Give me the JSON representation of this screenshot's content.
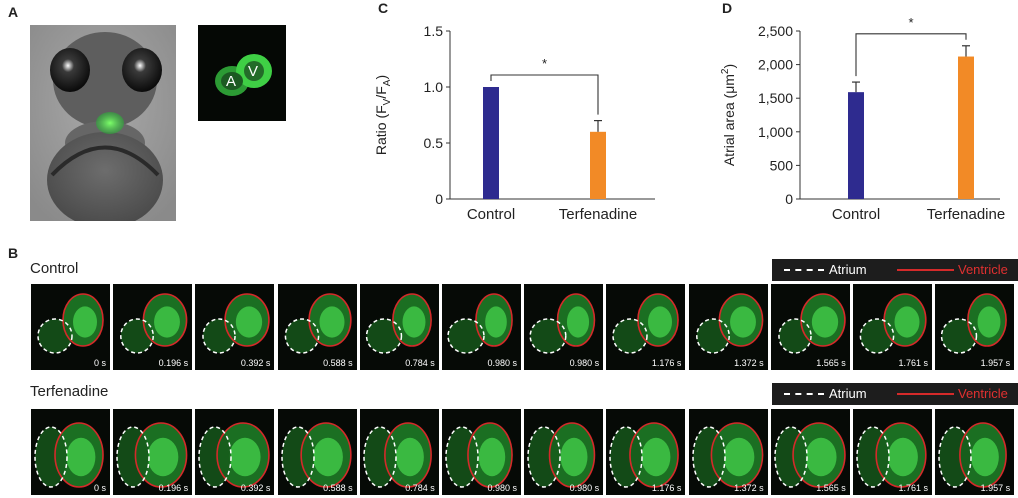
{
  "panels": {
    "a": "A",
    "b": "B",
    "c": "C",
    "d": "D"
  },
  "inset": {
    "atrium_letter": "A",
    "ventricle_letter": "V"
  },
  "legend": {
    "atrium": "Atrium",
    "ventricle": "Ventricle"
  },
  "rows": [
    {
      "label": "Control",
      "times": [
        "0 s",
        "0.196 s",
        "0.392 s",
        "0.588 s",
        "0.784 s",
        "0.980 s",
        "0.980 s",
        "1.176 s",
        "1.372 s",
        "1.565 s",
        "1.761 s",
        "1.957 s"
      ]
    },
    {
      "label": "Terfenadine",
      "times": [
        "0 s",
        "0.196 s",
        "0.392 s",
        "0.588 s",
        "0.784 s",
        "0.980 s",
        "0.980 s",
        "1.176 s",
        "1.372 s",
        "1.565 s",
        "1.761 s",
        "1.957 s"
      ]
    }
  ],
  "colors": {
    "control_bar": "#2e2b8f",
    "terfenadine_bar": "#f28a26",
    "ventricle_outline": "#d42a2a",
    "atrium_outline": "#ffffff",
    "fluorescence": "#2fbf3f"
  },
  "chart_data": [
    {
      "type": "bar",
      "categories": [
        "Control",
        "Terfenadine"
      ],
      "values": [
        1.0,
        0.6
      ],
      "errors": [
        0,
        0.1
      ],
      "ylabel_main": "Ratio (F",
      "ylabel_sub1": "V",
      "ylabel_mid": "/F",
      "ylabel_sub2": "A",
      "ylabel_end": ")",
      "ylim": [
        0,
        1.5
      ],
      "yticks": [
        "0",
        "0.5",
        "1.0",
        "1.5"
      ],
      "significance": "*"
    },
    {
      "type": "bar",
      "categories": [
        "Control",
        "Terfenadine"
      ],
      "values": [
        1590,
        2120
      ],
      "errors": [
        150,
        160
      ],
      "ylabel_main": "Atrial area (μm",
      "ylabel_sup": "2",
      "ylabel_end": ")",
      "ylim": [
        0,
        2500
      ],
      "yticks": [
        "0",
        "500",
        "1,000",
        "1,500",
        "2,000",
        "2,500"
      ],
      "significance": "*"
    }
  ]
}
